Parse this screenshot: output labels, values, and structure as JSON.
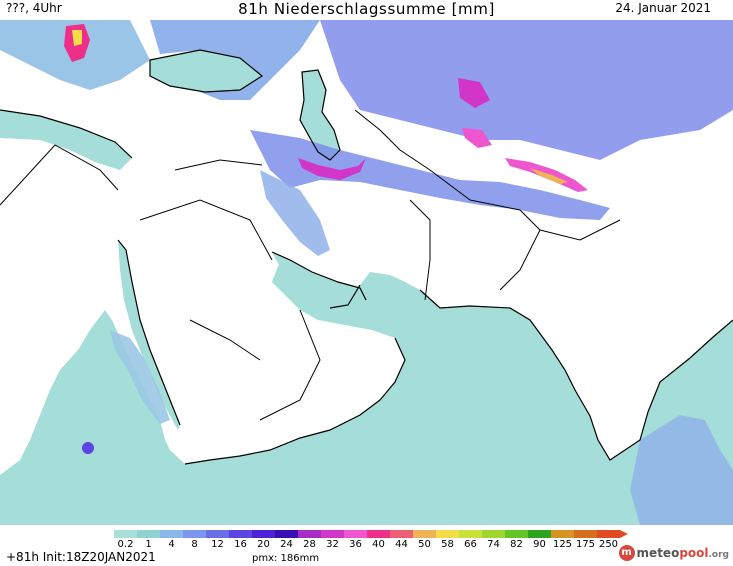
{
  "header": {
    "left": "???, 4Uhr",
    "title": "81h Niederschlagssumme [mm]",
    "date": "24. Januar 2021"
  },
  "footer": {
    "run": "+81h Init:18Z20JAN2021",
    "pmx": "pmx: 186mm",
    "logo_a": "meteo",
    "logo_b": "pool",
    "logo_c": ".org"
  },
  "legend": {
    "labels": [
      "0.2",
      "1",
      "4",
      "8",
      "12",
      "16",
      "20",
      "24",
      "28",
      "32",
      "36",
      "40",
      "44",
      "50",
      "58",
      "66",
      "74",
      "82",
      "90",
      "125",
      "175",
      "250"
    ],
    "colors": [
      "#a6e0d8",
      "#8fd2d0",
      "#89b7ea",
      "#7c95ee",
      "#6b6ee9",
      "#5b45e3",
      "#4b22d8",
      "#3a10b6",
      "#a72bc5",
      "#d236c8",
      "#ee56cf",
      "#ee2e88",
      "#ec5d76",
      "#f0b257",
      "#f3dd48",
      "#c9e23a",
      "#9ed62e",
      "#63c626",
      "#2da41d",
      "#d69523",
      "#d66d1e",
      "#e04b24"
    ]
  },
  "map": {
    "ocean_color": "#a5ddd8",
    "land_color": "#ffffff",
    "zones": [
      {
        "name": "balkans",
        "color": "#8fbfe4"
      },
      {
        "name": "turkey",
        "color": "#7ea5e8"
      },
      {
        "name": "caspian",
        "color": "#7b84ea"
      },
      {
        "name": "iran-north",
        "color": "#7d8fea"
      },
      {
        "name": "central-asia",
        "color": "#6f7ce8"
      },
      {
        "name": "afghan-himalaya",
        "color": "#6b6ee9"
      },
      {
        "name": "east-africa",
        "color": "#9cc8e4"
      }
    ]
  }
}
